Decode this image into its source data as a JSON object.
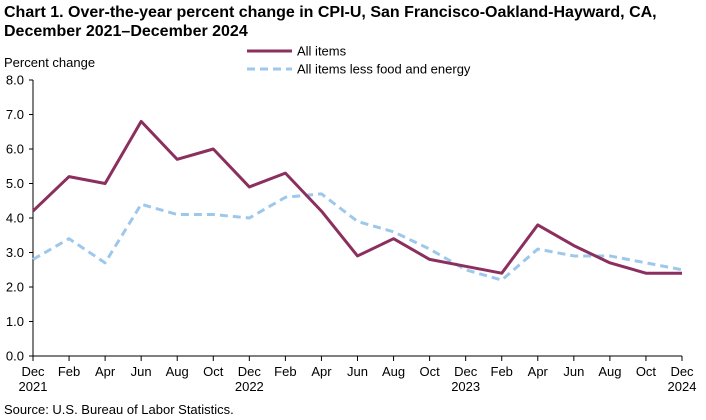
{
  "chart_data": {
    "type": "line",
    "title_line1": "Chart 1. Over-the-year percent change in CPI-U, San Francisco-Oakland-Hayward,  CA,",
    "title_line2": "December  2021–December  2024",
    "ylabel": "Percent change",
    "ylim": [
      0,
      8
    ],
    "yticks": [
      "0.0",
      "1.0",
      "2.0",
      "3.0",
      "4.0",
      "5.0",
      "6.0",
      "7.0",
      "8.0"
    ],
    "x_labels": [
      {
        "month": "Dec",
        "year": "2021"
      },
      {
        "month": "Feb",
        "year": ""
      },
      {
        "month": "Apr",
        "year": ""
      },
      {
        "month": "Jun",
        "year": ""
      },
      {
        "month": "Aug",
        "year": ""
      },
      {
        "month": "Oct",
        "year": ""
      },
      {
        "month": "Dec",
        "year": "2022"
      },
      {
        "month": "Feb",
        "year": ""
      },
      {
        "month": "Apr",
        "year": ""
      },
      {
        "month": "Jun",
        "year": ""
      },
      {
        "month": "Aug",
        "year": ""
      },
      {
        "month": "Oct",
        "year": ""
      },
      {
        "month": "Dec",
        "year": "2023"
      },
      {
        "month": "Feb",
        "year": ""
      },
      {
        "month": "Apr",
        "year": ""
      },
      {
        "month": "Jun",
        "year": ""
      },
      {
        "month": "Aug",
        "year": ""
      },
      {
        "month": "Oct",
        "year": ""
      },
      {
        "month": "Dec",
        "year": "2024"
      }
    ],
    "series": [
      {
        "name": "All items",
        "color": "#8B2F5E",
        "style": "solid",
        "values": [
          4.2,
          5.2,
          5.0,
          6.8,
          5.7,
          6.0,
          4.9,
          5.3,
          4.2,
          2.9,
          3.4,
          2.8,
          2.6,
          2.4,
          3.8,
          3.2,
          2.7,
          2.4,
          2.4
        ]
      },
      {
        "name": "All items less food and energy",
        "color": "#9DC8EC",
        "style": "dashed",
        "values": [
          2.8,
          3.4,
          2.7,
          4.4,
          4.1,
          4.1,
          4.0,
          4.6,
          4.7,
          3.9,
          3.6,
          3.1,
          2.5,
          2.2,
          3.1,
          2.9,
          2.9,
          2.7,
          2.5
        ]
      }
    ],
    "grid": false,
    "legend_position": "top-center",
    "source": "Source: U.S. Bureau  of Labor Statistics."
  }
}
